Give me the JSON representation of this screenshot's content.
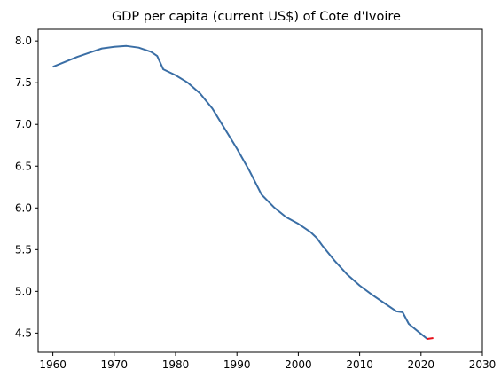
{
  "chart_data": {
    "type": "line",
    "title": "GDP per capita (current US$) of Cote d'Ivoire",
    "xlabel": "",
    "ylabel": "",
    "xlim": [
      1957.6,
      2030
    ],
    "ylim": [
      4.27,
      8.14
    ],
    "xticks": [
      "1960",
      "1970",
      "1980",
      "1990",
      "2000",
      "2010",
      "2020",
      "2030"
    ],
    "yticks": [
      "4.5",
      "5.0",
      "5.5",
      "6.0",
      "6.5",
      "7.0",
      "7.5",
      "8.0"
    ],
    "grid": false,
    "series": [
      {
        "color": "#3a6ea5",
        "x": [
          1960,
          1962,
          1964,
          1966,
          1968,
          1970,
          1972,
          1974,
          1976,
          1977,
          1978,
          1980,
          1982,
          1984,
          1986,
          1988,
          1990,
          1992,
          1994,
          1996,
          1998,
          2000,
          2002,
          2003,
          2004,
          2006,
          2008,
          2010,
          2012,
          2014,
          2016,
          2017,
          2018,
          2020,
          2021
        ],
        "y": [
          7.69,
          7.75,
          7.81,
          7.86,
          7.91,
          7.93,
          7.94,
          7.92,
          7.87,
          7.82,
          7.66,
          7.59,
          7.5,
          7.37,
          7.19,
          6.95,
          6.71,
          6.45,
          6.16,
          6.01,
          5.89,
          5.81,
          5.71,
          5.64,
          5.54,
          5.36,
          5.2,
          5.07,
          4.96,
          4.86,
          4.76,
          4.75,
          4.61,
          4.49,
          4.43
        ]
      },
      {
        "color": "#e8101a",
        "x": [
          2021,
          2022
        ],
        "y": [
          4.43,
          4.44
        ]
      }
    ]
  }
}
